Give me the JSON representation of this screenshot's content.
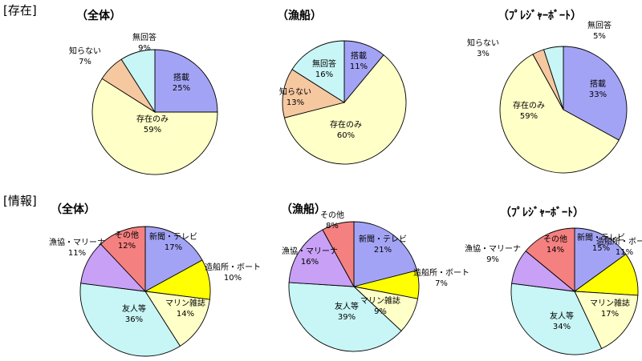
{
  "sections": [
    "[存在]",
    "[情報]"
  ],
  "chart_data": [
    {
      "type": "pie",
      "section": "[存在]",
      "title": "（全体）",
      "slices": [
        {
          "label": "搭載",
          "value": 25,
          "value_label": "25%",
          "color": "#a3a3f5"
        },
        {
          "label": "存在のみ",
          "value": 59,
          "value_label": "59%",
          "color": "#ffffc8"
        },
        {
          "label": "知らない",
          "value": 7,
          "value_label": "7%",
          "color": "#f5c8a0"
        },
        {
          "label": "無回答",
          "value": 9,
          "value_label": "9%",
          "color": "#c8f5f5"
        }
      ]
    },
    {
      "type": "pie",
      "section": "[存在]",
      "title": "（漁船）",
      "slices": [
        {
          "label": "搭載",
          "value": 11,
          "value_label": "11%",
          "color": "#a3a3f5"
        },
        {
          "label": "存在のみ",
          "value": 60,
          "value_label": "60%",
          "color": "#ffffc8"
        },
        {
          "label": "知らない",
          "value": 13,
          "value_label": "13%",
          "color": "#f5c8a0"
        },
        {
          "label": "無回答",
          "value": 16,
          "value_label": "16%",
          "color": "#c8f5f5"
        }
      ]
    },
    {
      "type": "pie",
      "section": "[存在]",
      "title": "（ﾌﾟﾚｼﾞｬｰﾎﾞｰﾄ）",
      "slices": [
        {
          "label": "搭載",
          "value": 33,
          "value_label": "33%",
          "color": "#a3a3f5"
        },
        {
          "label": "存在のみ",
          "value": 59,
          "value_label": "59%",
          "color": "#ffffc8"
        },
        {
          "label": "知らない",
          "value": 3,
          "value_label": "3%",
          "color": "#f5c8a0"
        },
        {
          "label": "無回答",
          "value": 5,
          "value_label": "5%",
          "color": "#c8f5f5"
        }
      ]
    },
    {
      "type": "pie",
      "section": "[情報]",
      "title": "（全体）",
      "slices": [
        {
          "label": "新聞・テレビ",
          "value": 17,
          "value_label": "17%",
          "color": "#a3a3f5"
        },
        {
          "label": "造船所・ボート",
          "value": 10,
          "value_label": "10%",
          "color": "#ffff00"
        },
        {
          "label": "マリン雑誌",
          "value": 14,
          "value_label": "14%",
          "color": "#ffffc8"
        },
        {
          "label": "友人等",
          "value": 36,
          "value_label": "36%",
          "color": "#c8f5f5"
        },
        {
          "label": "漁協・マリーナ",
          "value": 11,
          "value_label": "11%",
          "color": "#c8a0f5"
        },
        {
          "label": "その他",
          "value": 12,
          "value_label": "12%",
          "color": "#f58080"
        }
      ]
    },
    {
      "type": "pie",
      "section": "[情報]",
      "title": "（漁船）",
      "slices": [
        {
          "label": "新聞・テレビ",
          "value": 21,
          "value_label": "21%",
          "color": "#a3a3f5"
        },
        {
          "label": "造船所・ボート",
          "value": 7,
          "value_label": "7%",
          "color": "#ffff00"
        },
        {
          "label": "マリン雑誌",
          "value": 9,
          "value_label": "9%",
          "color": "#ffffc8"
        },
        {
          "label": "友人等",
          "value": 39,
          "value_label": "39%",
          "color": "#c8f5f5"
        },
        {
          "label": "漁協・マリーナ",
          "value": 16,
          "value_label": "16%",
          "color": "#c8a0f5"
        },
        {
          "label": "その他",
          "value": 8,
          "value_label": "8%",
          "color": "#f58080"
        }
      ]
    },
    {
      "type": "pie",
      "section": "[情報]",
      "title": "（ﾌﾟﾚｼﾞｬｰﾎﾞｰﾄ）",
      "slices": [
        {
          "label": "新聞・テレビ",
          "value": 15,
          "value_label": "15%",
          "color": "#a3a3f5"
        },
        {
          "label": "造船所・ボート",
          "value": 11,
          "value_label": "11%",
          "color": "#ffff00"
        },
        {
          "label": "マリン雑誌",
          "value": 17,
          "value_label": "17%",
          "color": "#ffffc8"
        },
        {
          "label": "友人等",
          "value": 34,
          "value_label": "34%",
          "color": "#c8f5f5"
        },
        {
          "label": "漁協・マリーナ",
          "value": 9,
          "value_label": "9%",
          "color": "#c8a0f5"
        },
        {
          "label": "その他",
          "value": 14,
          "value_label": "14%",
          "color": "#f58080"
        }
      ]
    }
  ]
}
